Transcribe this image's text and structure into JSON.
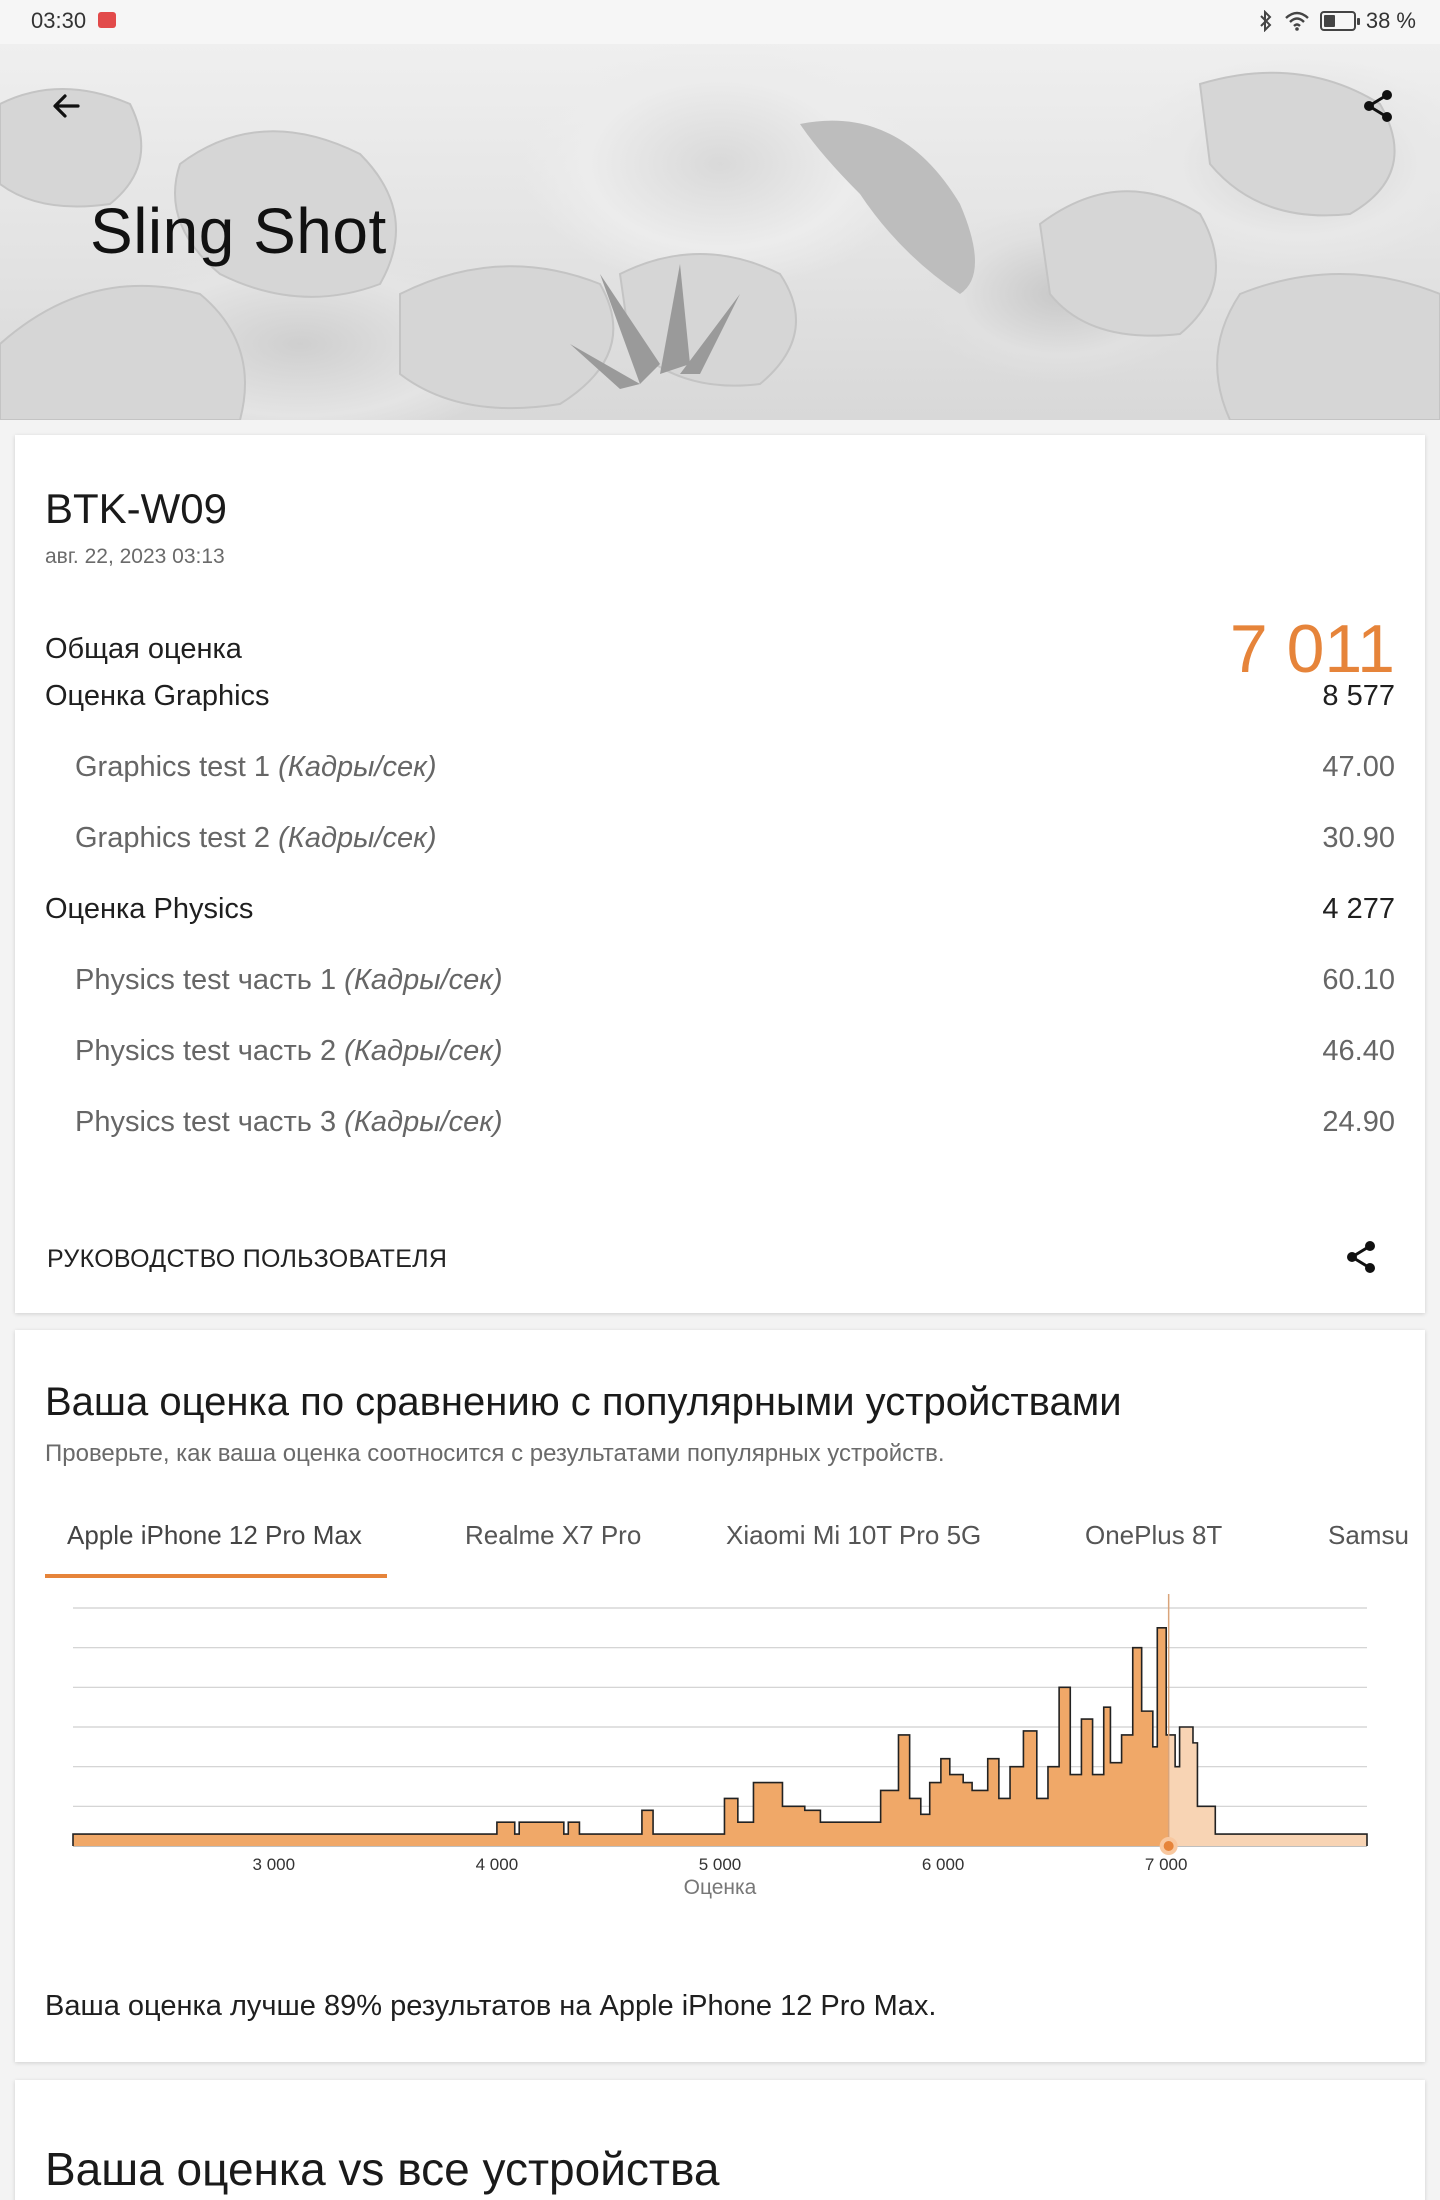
{
  "status_bar": {
    "time": "03:30",
    "battery": "38 %"
  },
  "header": {
    "title": "Sling Shot"
  },
  "result": {
    "device": "BTK-W09",
    "date": "авг. 22, 2023 03:13",
    "total_label": "Общая оценка",
    "total_value": "7 011",
    "rows": [
      {
        "label": "Оценка Graphics",
        "unit": "",
        "value": "8 577",
        "sub": false
      },
      {
        "label": "Graphics test 1",
        "unit": "(Кадры/сек)",
        "value": "47.00",
        "sub": true
      },
      {
        "label": "Graphics test 2",
        "unit": "(Кадры/сек)",
        "value": "30.90",
        "sub": true
      },
      {
        "label": "Оценка Physics",
        "unit": "",
        "value": "4 277",
        "sub": false
      },
      {
        "label": "Physics test часть 1",
        "unit": "(Кадры/сек)",
        "value": "60.10",
        "sub": true
      },
      {
        "label": "Physics test часть 2",
        "unit": "(Кадры/сек)",
        "value": "46.40",
        "sub": true
      },
      {
        "label": "Physics test часть 3",
        "unit": "(Кадры/сек)",
        "value": "24.90",
        "sub": true
      }
    ],
    "guide_label": "РУКОВОДСТВО ПОЛЬЗОВАТЕЛЯ"
  },
  "comparison": {
    "title": "Ваша оценка по сравнению с популярными устройствами",
    "subtitle": "Проверьте, как ваша оценка соотносится с результатами популярных устройств.",
    "tabs": [
      "Apple iPhone 12 Pro Max",
      "Realme X7 Pro",
      "Xiaomi Mi 10T Pro 5G",
      "OnePlus 8T",
      "Samsung"
    ],
    "active_tab": 0,
    "result_text": "Ваша оценка лучше 89% результатов на Apple iPhone 12 Pro Max."
  },
  "vs_all": {
    "title": "Ваша оценка vs все устройства"
  },
  "colors": {
    "accent": "#e6843a",
    "fill": "#f0a868",
    "fill_light": "#f8d4b4"
  },
  "chart_data": {
    "type": "area",
    "xlabel": "Оценка",
    "ylabel": "",
    "xlim": [
      2100,
      7900
    ],
    "ylim": [
      0,
      6
    ],
    "x_ticks": [
      3000,
      4000,
      5000,
      6000,
      7000
    ],
    "x_tick_labels": [
      "3 000",
      "4 000",
      "5 000",
      "6 000",
      "7 000"
    ],
    "marker_score": 7011,
    "grid": true,
    "bins": [
      [
        2100,
        0.3
      ],
      [
        4000,
        0.6
      ],
      [
        4080,
        0.3
      ],
      [
        4100,
        0.6
      ],
      [
        4300,
        0.3
      ],
      [
        4320,
        0.6
      ],
      [
        4370,
        0.3
      ],
      [
        4650,
        0.9
      ],
      [
        4700,
        0.3
      ],
      [
        5020,
        1.2
      ],
      [
        5080,
        0.6
      ],
      [
        5150,
        1.6
      ],
      [
        5280,
        1.0
      ],
      [
        5380,
        0.9
      ],
      [
        5450,
        0.6
      ],
      [
        5720,
        1.4
      ],
      [
        5800,
        2.8
      ],
      [
        5850,
        1.2
      ],
      [
        5900,
        0.8
      ],
      [
        5940,
        1.6
      ],
      [
        5990,
        2.2
      ],
      [
        6030,
        1.8
      ],
      [
        6090,
        1.6
      ],
      [
        6130,
        1.4
      ],
      [
        6200,
        2.2
      ],
      [
        6250,
        1.2
      ],
      [
        6300,
        2.0
      ],
      [
        6360,
        2.9
      ],
      [
        6420,
        1.2
      ],
      [
        6470,
        2.0
      ],
      [
        6520,
        4.0
      ],
      [
        6570,
        1.8
      ],
      [
        6620,
        3.2
      ],
      [
        6670,
        1.8
      ],
      [
        6720,
        3.5
      ],
      [
        6750,
        2.1
      ],
      [
        6800,
        2.8
      ],
      [
        6850,
        5.0
      ],
      [
        6890,
        3.4
      ],
      [
        6940,
        2.5
      ],
      [
        6960,
        5.5
      ],
      [
        7000,
        2.8
      ],
      [
        7040,
        2.0
      ],
      [
        7060,
        3.0
      ],
      [
        7120,
        2.6
      ],
      [
        7140,
        1.0
      ],
      [
        7220,
        0.3
      ],
      [
        7900,
        0.3
      ]
    ]
  }
}
